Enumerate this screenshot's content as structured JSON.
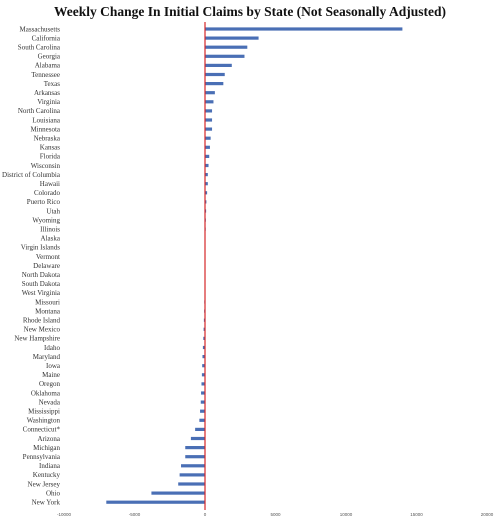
{
  "chart_data": {
    "type": "bar",
    "orientation": "horizontal",
    "title": "Weekly Change In Initial Claims by State (Not Seasonally Adjusted)",
    "xlabel": "",
    "ylabel": "",
    "xlim": [
      -10000,
      20000
    ],
    "xticks": [
      -10000,
      -5000,
      0,
      5000,
      10000,
      15000,
      20000
    ],
    "xtick_labels": [
      "-10000",
      "-5000",
      "0",
      "5000",
      "10000",
      "15000",
      "20000"
    ],
    "grid": false,
    "bar_color": "#4a6fb5",
    "zero_line_color": "#d62728",
    "categories": [
      "Massachusetts",
      "California",
      "South Carolina",
      "Georgia",
      "Alabama",
      "Tennessee",
      "Texas",
      "Arkansas",
      "Virginia",
      "North Carolina",
      "Louisiana",
      "Minnesota",
      "Nebraska",
      "Kansas",
      "Florida",
      "Wisconsin",
      "District of Columbia",
      "Hawaii",
      "Colorado",
      "Puerto Rico",
      "Utah",
      "Wyoming",
      "Illinois",
      "Alaska",
      "Virgin Islands",
      "Vermont",
      "Delaware",
      "North Dakota",
      "South Dakota",
      "West Virginia",
      "Missouri",
      "Montana",
      "Rhode Island",
      "New Mexico",
      "New Hampshire",
      "Idaho",
      "Maryland",
      "Iowa",
      "Maine",
      "Oregon",
      "Oklahoma",
      "Nevada",
      "Mississippi",
      "Washington",
      "Connecticut*",
      "Arizona",
      "Michigan",
      "Pennsylvania",
      "Indiana",
      "Kentucky",
      "New Jersey",
      "Ohio",
      "New York"
    ],
    "values": [
      14000,
      3800,
      3000,
      2800,
      1900,
      1400,
      1300,
      700,
      600,
      500,
      500,
      500,
      400,
      350,
      300,
      250,
      200,
      200,
      150,
      100,
      80,
      60,
      50,
      30,
      20,
      10,
      10,
      0,
      0,
      -10,
      -50,
      -60,
      -80,
      -100,
      -120,
      -150,
      -180,
      -200,
      -220,
      -250,
      -280,
      -300,
      -350,
      -400,
      -700,
      -1000,
      -1400,
      -1400,
      -1700,
      -1800,
      -1900,
      -3800,
      -7000
    ]
  }
}
